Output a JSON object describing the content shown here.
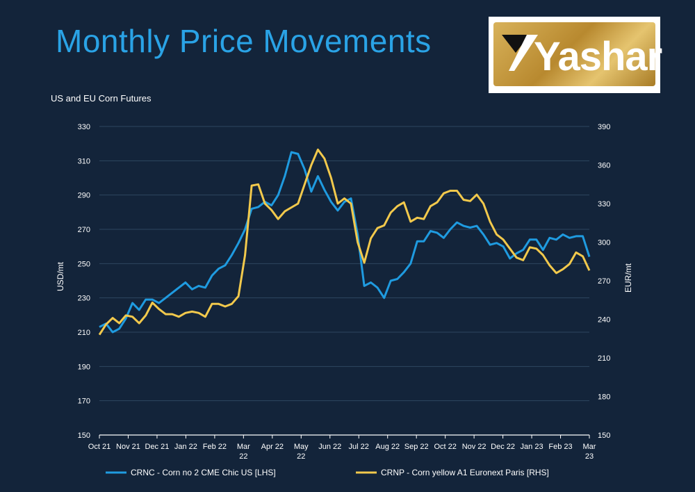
{
  "header": {
    "title": "Monthly Price Movements",
    "logo_text": "Yashar"
  },
  "colors": {
    "background": "#13243a",
    "title": "#2aa3e6",
    "series_lhs": "#1f9be0",
    "series_rhs": "#f2c94c",
    "grid": "#2e4660"
  },
  "chart_data": {
    "type": "line",
    "title": "US and EU Corn Futures",
    "ylabel": "USD/mt",
    "y2label": "EUR/mt",
    "ylim": [
      150,
      330
    ],
    "y2lim": [
      150,
      390
    ],
    "yticks": [
      150,
      170,
      190,
      210,
      230,
      250,
      270,
      290,
      310,
      330
    ],
    "y2ticks": [
      150,
      180,
      210,
      240,
      270,
      300,
      330,
      360,
      390
    ],
    "grid": true,
    "legend_position": "bottom",
    "x_tick_labels": [
      [
        "Oct 21"
      ],
      [
        "Nov 21"
      ],
      [
        "Dec 21"
      ],
      [
        "Jan 22"
      ],
      [
        "Feb 22"
      ],
      [
        "Mar",
        "22"
      ],
      [
        "Apr 22"
      ],
      [
        "May",
        "22"
      ],
      [
        "Jun 22"
      ],
      [
        "Jul 22"
      ],
      [
        "Aug 22"
      ],
      [
        "Sep 22"
      ],
      [
        "Oct 22"
      ],
      [
        "Nov 22"
      ],
      [
        "Dec 22"
      ],
      [
        "Jan 23"
      ],
      [
        "Feb 23"
      ],
      [
        "Mar",
        "23"
      ]
    ],
    "series": [
      {
        "name": "CRNC - Corn no 2 CME Chic US [LHS]",
        "axis": "left",
        "values": [
          213,
          215,
          210,
          212,
          218,
          227,
          223,
          229,
          229,
          227,
          230,
          233,
          236,
          239,
          235,
          237,
          236,
          243,
          247,
          249,
          255,
          262,
          270,
          282,
          283,
          286,
          284,
          290,
          301,
          315,
          314,
          305,
          292,
          301,
          293,
          286,
          281,
          286,
          288,
          267,
          237,
          239,
          236,
          230,
          240,
          241,
          245,
          250,
          263,
          263,
          269,
          268,
          265,
          270,
          274,
          272,
          271,
          272,
          267,
          261,
          262,
          260,
          253,
          256,
          258,
          264,
          264,
          258,
          265,
          264,
          267,
          265,
          266,
          266,
          254
        ],
        "y2_values": null
      },
      {
        "name": "CRNP - Corn yellow A1 Euronext Paris [RHS]",
        "axis": "right",
        "values": [
          228,
          236,
          241,
          237,
          243,
          242,
          237,
          243,
          253,
          248,
          244,
          244,
          242,
          245,
          246,
          245,
          242,
          252,
          252,
          250,
          252,
          258,
          290,
          344,
          345,
          330,
          325,
          318,
          324,
          327,
          330,
          345,
          360,
          372,
          365,
          350,
          330,
          334,
          330,
          300,
          284,
          303,
          311,
          313,
          323,
          328,
          331,
          316,
          319,
          318,
          328,
          331,
          338,
          340,
          340,
          333,
          332,
          337,
          330,
          316,
          306,
          302,
          295,
          288,
          286,
          296,
          295,
          290,
          282,
          276,
          279,
          283,
          292,
          289,
          278
        ]
      }
    ]
  }
}
